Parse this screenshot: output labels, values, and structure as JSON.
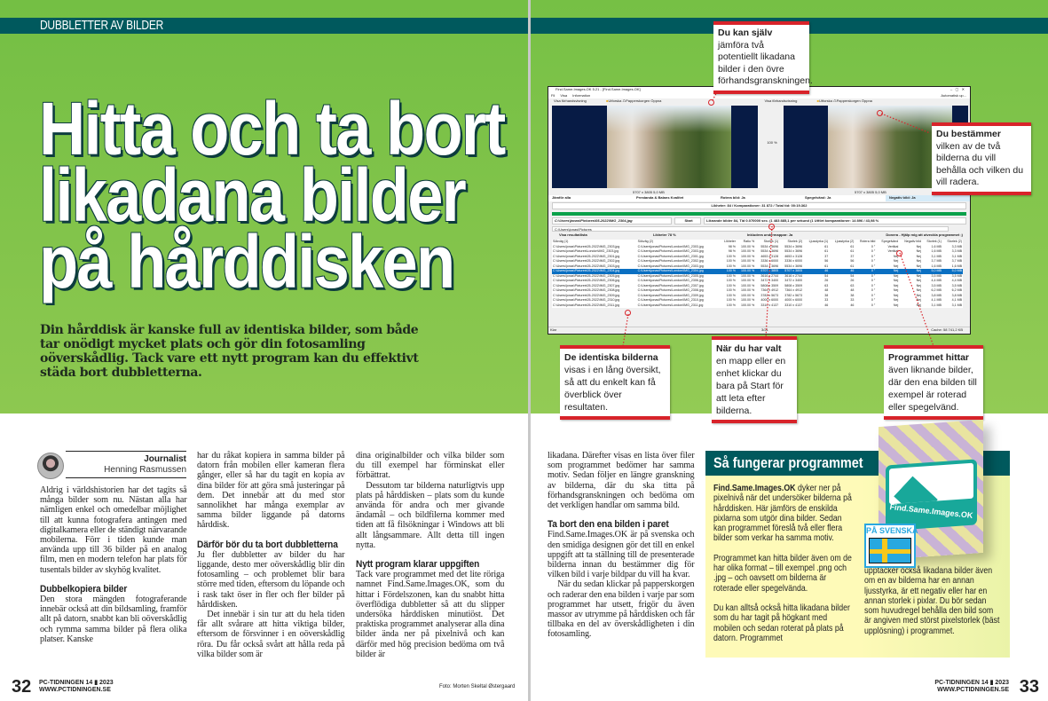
{
  "left_page": {
    "section": "DUBBLETTER AV BILDER",
    "title_lines": [
      "Hitta och ta bort",
      "likadana bilder",
      "på hårddisken"
    ],
    "intro": "Din hårddisk är kanske full av identiska bilder, som både tar onödigt mycket plats och gör din fotosamling oöverskådlig. Tack vare ett nytt program kan du effektivt städa bort dubbletterna.",
    "byline": {
      "role": "Journalist",
      "name": "Henning Rasmussen"
    },
    "col1": {
      "p1": "Aldrig i världshistorien har det tagits så många bilder som nu. Nästan alla har nämligen enkel och omedelbar möjlighet till att kunna fotografera antingen med digitalkamera eller de ständigt närvarande mobilerna. Förr i tiden kunde man använda upp till 36 bilder på en analog film, men en modern telefon har plats för tusentals bilder av skyhög kvalitet.",
      "h1": "Dubbelkopiera bilder",
      "p2": "Den stora mängden fotograferande innebär också att din bildsamling, framför allt på datorn, snabbt kan bli oöverskådlig och rymma samma bilder på flera olika platser. Kanske"
    },
    "col2": {
      "p1": "har du råkat kopiera in samma bilder på datorn från mobilen eller kameran flera gånger, eller så har du tagit en kopia av dina bilder för att göra små justeringar på dem. Det innebär att du med stor sannolikhet har många exemplar av samma bilder liggande på datorns hårddisk.",
      "h1": "Därför bör du ta bort dubbletterna",
      "p2": "Ju fler dubbletter av bilder du har liggande, desto mer oöverskådlig blir din fotosamling – och problemet blir bara större med tiden, eftersom du löpande och i rask takt öser in fler och fler bilder på hårddisken.",
      "p3": "Det innebär i sin tur att du hela tiden får allt svårare att hitta viktiga bilder, eftersom de försvinner i en oöverskådlig röra. Du får också svårt att hålla reda på vilka bilder som är"
    },
    "col3": {
      "p1": "dina originalbilder och vilka bilder som du till exempel har förminskat eller förbättrat.",
      "p2": "Dessutom tar bilderna naturligtvis upp plats på hårddisken – plats som du kunde använda för andra och mer givande ändamål – och bildfilerna kommer med tiden att få filsökningar i Windows att bli allt långsammare. Allt detta till ingen nytta.",
      "h1": "Nytt program klarar uppgiften",
      "p3": "Tack vare programmet med det lite röriga namnet Find.Same.Images.OK, som du hittar i Fördelszonen, kan du snabbt hitta överflödiga dubbletter så att du slipper undersöka hårddisken minutiöst. Det praktiska programmet analyserar alla dina bilder ända ner på pixelnivå och kan därför med hög precision bedöma om två bilder är"
    },
    "photo_credit": "Foto: Morten Skeltal Østergaard",
    "folio": {
      "page": "32",
      "magazine": "PC-TIDNINGEN 14 ▮ 2023",
      "url": "WWW.PCTIDNINGEN.SE"
    }
  },
  "right_page": {
    "app": {
      "title": "Find.Same.Images.OK 5.21 - [Find.Same.Images.OK]",
      "menu": [
        "Fil",
        "Visa",
        "Information"
      ],
      "toolbar": [
        "Visa förhandsvisning",
        "Utforska",
        "Papperskorgen",
        "Öppna"
      ],
      "toolbar_right": "Automatisk up...",
      "image_info": "5707 x 3805 5,0 MB",
      "compare_ratio": "100 %",
      "options": [
        "Jämför alla",
        "Prestanda & Balans Kvalitet",
        "Rotera bild: Ja",
        "Spegelvänd: Ja",
        "Negativ bild: Ja"
      ],
      "status": "Likheter: 84 / Komparationer: 31 872 / Total tid: 00:19.362",
      "progress": 1.0,
      "current_file": "C:\\Users\\jonas\\Pictures\\05-2022\\IMG_2304.jpg",
      "start_label": "Start",
      "result_info": "Liknande bilder 84, Tid 0.070000 sec. (1 483 885,1 per sekund (1 Utfört komparationer: 14 896 / 43,98 %",
      "folder": "C:\\Users\\jonas\\Pictures",
      "view_options": [
        "Visa resultatlista",
        "Likheter 78 %",
        "Inkludera undermappar: Ja",
        "Donera - Hjälp mig att utveckla programmet ;)"
      ],
      "columns": [
        "Sökväg (1)",
        "Sökväg (2)",
        "Likheter",
        "Ratio %",
        "Storlek (1)",
        "Storlek (2)",
        "Ljusstyrka (1)",
        "Ljusstyrka (2)",
        "Rotera bild",
        "Spegelvänd",
        "Negativ bild",
        "Storlek (1)",
        "Storlek (2)"
      ],
      "rows": [
        [
          "C:\\Users\\jonas\\Pictures\\05-2022\\IMG_2303.jpg",
          "C:\\Users\\jonas\\Pictures\\London\\IMG_2303.jpg",
          "98 %",
          "100.00 %",
          "5534 x 3696",
          "5534 x 3696",
          "61",
          "61",
          "0 °",
          "Vertikal",
          "Nej",
          "1,6 MB",
          "3,3 MB"
        ],
        [
          "C:\\Users\\jonas\\Pictures\\London\\IMG_2303.jpg",
          "C:\\Users\\jonas\\Pictures\\London\\IMG_2303.jpg",
          "98 %",
          "100.00 %",
          "5534 x 3696",
          "5534 x 3696",
          "61",
          "61",
          "0 °",
          "Vertikal",
          "Nej",
          "1,6 MB",
          "3,3 MB"
        ],
        [
          "C:\\Users\\jonas\\Pictures\\05-2022\\IMG_2301.jpg",
          "C:\\Users\\jonas\\Pictures\\London\\IMG_2301.jpg",
          "100 %",
          "100.00 %",
          "4653 x 3128",
          "4653 x 3128",
          "37",
          "37",
          "0 °",
          "Nej",
          "Nej",
          "3,1 MB",
          "3,1 MB"
        ],
        [
          "C:\\Users\\jonas\\Pictures\\05-2022\\IMG_2302.jpg",
          "C:\\Users\\jonas\\Pictures\\London\\IMG_2302.jpg",
          "100 %",
          "100.00 %",
          "3336 x 6000",
          "3336 x 6000",
          "56",
          "56",
          "0 °",
          "Nej",
          "Nej",
          "3,7 MB",
          "3,7 MB"
        ],
        [
          "C:\\Users\\jonas\\Pictures\\05-2022\\IMG_2303.jpg",
          "C:\\Users\\jonas\\Pictures\\London\\IMG_2303.jpg",
          "100 %",
          "100.00 %",
          "5534 x 3696",
          "5534 x 3696",
          "61",
          "61",
          "0 °",
          "Nej",
          "Nej",
          "1,6 MB",
          "1,6 MB"
        ],
        [
          "C:\\Users\\jonas\\Pictures\\05-2022\\IMG_2304.jpg",
          "C:\\Users\\jonas\\Pictures\\London\\IMG_2304.jpg",
          "100 %",
          "100.00 %",
          "5707 x 3805",
          "5707 x 3805",
          "46",
          "46",
          "0 °",
          "Nej",
          "Nej",
          "5,0 MB",
          "5,0 MB"
        ],
        [
          "C:\\Users\\jonas\\Pictures\\05-2022\\IMG_2305.jpg",
          "C:\\Users\\jonas\\Pictures\\London\\IMG_2305.jpg",
          "100 %",
          "100.00 %",
          "3616 x 2744",
          "3616 x 2744",
          "54",
          "54",
          "0 °",
          "Nej",
          "Nej",
          "3,5 MB",
          "3,5 MB"
        ],
        [
          "C:\\Users\\jonas\\Pictures\\05-2022\\IMG_2306.jpg",
          "C:\\Users\\jonas\\Pictures\\London\\IMG_2306.jpg",
          "100 %",
          "100.00 %",
          "3472 x 3400",
          "3472 x 3400",
          "26",
          "26",
          "0 °",
          "Nej",
          "Nej",
          "4,4 MB",
          "4,4 MB"
        ],
        [
          "C:\\Users\\jonas\\Pictures\\05-2022\\IMG_2307.jpg",
          "C:\\Users\\jonas\\Pictures\\London\\IMG_2307.jpg",
          "100 %",
          "100.00 %",
          "5808 x 3509",
          "5808 x 3509",
          "63",
          "63",
          "0 °",
          "Nej",
          "Nej",
          "3,5 MB",
          "3,5 MB"
        ],
        [
          "C:\\Users\\jonas\\Pictures\\05-2022\\IMG_2308.jpg",
          "C:\\Users\\jonas\\Pictures\\London\\IMG_2308.jpg",
          "100 %",
          "100.00 %",
          "7364 x 4912",
          "7364 x 4912",
          "48",
          "48",
          "0 °",
          "Nej",
          "Nej",
          "6,2 MB",
          "6,2 MB"
        ],
        [
          "C:\\Users\\jonas\\Pictures\\05-2022\\IMG_2309.jpg",
          "C:\\Users\\jonas\\Pictures\\London\\IMG_2309.jpg",
          "100 %",
          "100.00 %",
          "3782 x 5673",
          "3782 x 5673",
          "38",
          "38",
          "0 °",
          "Nej",
          "Nej",
          "3,8 MB",
          "3,8 MB"
        ],
        [
          "C:\\Users\\jonas\\Pictures\\05-2022\\IMG_2310.jpg",
          "C:\\Users\\jonas\\Pictures\\London\\IMG_2310.jpg",
          "100 %",
          "100.00 %",
          "4000 x 6000",
          "4000 x 6000",
          "33",
          "33",
          "0 °",
          "Nej",
          "Nej",
          "4,1 MB",
          "4,1 MB"
        ],
        [
          "C:\\Users\\jonas\\Pictures\\05-2022\\IMG_2311.jpg",
          "C:\\Users\\jonas\\Pictures\\London\\IMG_2311.jpg",
          "100 %",
          "100.00 %",
          "3310 x 4137",
          "3310 x 4137",
          "46",
          "46",
          "0 °",
          "Nej",
          "Nej",
          "3,1 MB",
          "3,1 MB"
        ]
      ],
      "statusbar_left": "Klar",
      "statusbar_mid": "3/21",
      "statusbar_right": "Cache: 58 741,2 KB"
    },
    "callouts": [
      {
        "bold": "Du kan själv",
        "text": " jämföra två potentiellt likadana bilder i den övre förhandsgranskningen."
      },
      {
        "bold": "Du bestämmer",
        "text": " vilken av de två bilderna du vill behålla och vilken du vill radera."
      },
      {
        "bold": "De identiska bilderna",
        "text": " visas i en lång översikt, så att du enkelt kan få överblick över resultaten."
      },
      {
        "bold": "När du har valt",
        "text": " en mapp eller en enhet klickar du bara på Start för att leta efter bilderna."
      },
      {
        "bold": "Programmet hittar",
        "text": " även liknande bilder, där den ena bilden till exempel är roterad eller spegelvänd."
      }
    ],
    "col1": {
      "p1": "likadana. Därefter visas en lista över filer som programmet bedömer har samma motiv. Sedan följer en längre granskning av bilderna, där du ska titta på förhandsgranskningen och bedöma om det verkligen handlar om samma bild.",
      "h1": "Ta bort den ena bilden i paret",
      "p2": "Find.Same.Images.OK är på svenska och den smidiga designen gör det till en enkel uppgift att ta ställning till de presenterade bilderna innan du bestämmer dig för vilken bild i varje bildpar du vill ha kvar.",
      "p3": "När du sedan klickar på papperskorgen och raderar den ena bilden i varje par som programmet har utsett, frigör du även massor av utrymme på hårddisken och får tillbaka en del av överskådligheten i din fotosamling."
    },
    "box": {
      "title": "Så fungerar programmet",
      "p1_bold": "Find.Same.Images.OK",
      "p1": " dyker ner på pixelnivå när det undersöker bilderna på hårddisken. Här jämförs de enskilda pixlarna som utgör dina bilder. Sedan kan programmet föreslå två eller flera bilder som verkar ha samma motiv.",
      "p2": "Programmet kan hitta bilder även om de har olika format – till exempel .png och .jpg – och oavsett om bilderna är roterade eller spegelvända.",
      "p3": "Du kan alltså också hitta likadana bilder som du har tagit på högkant med mobilen och sedan roterat på plats på datorn. Programmet",
      "p4": "upptäcker också likadana bilder även om en av bilderna har en annan ljusstyrka, är ett negativ eller har en annan storlek i pixlar. Du bör sedan som huvudregel behålla den bild som är angiven med störst pixelstorlek (bäst upplösning) i programmet.",
      "product_name": "Find.Same.Images.OK",
      "badge": "PÅ SVENSKA"
    },
    "folio": {
      "page": "33",
      "magazine": "PC-TIDNINGEN 14 ▮ 2023",
      "url": "WWW.PCTIDNINGEN.SE"
    }
  },
  "colors": {
    "green": "#76c045",
    "teal": "#00595d",
    "callout_red": "#d8232a",
    "box_yellow": "#fefab8"
  }
}
